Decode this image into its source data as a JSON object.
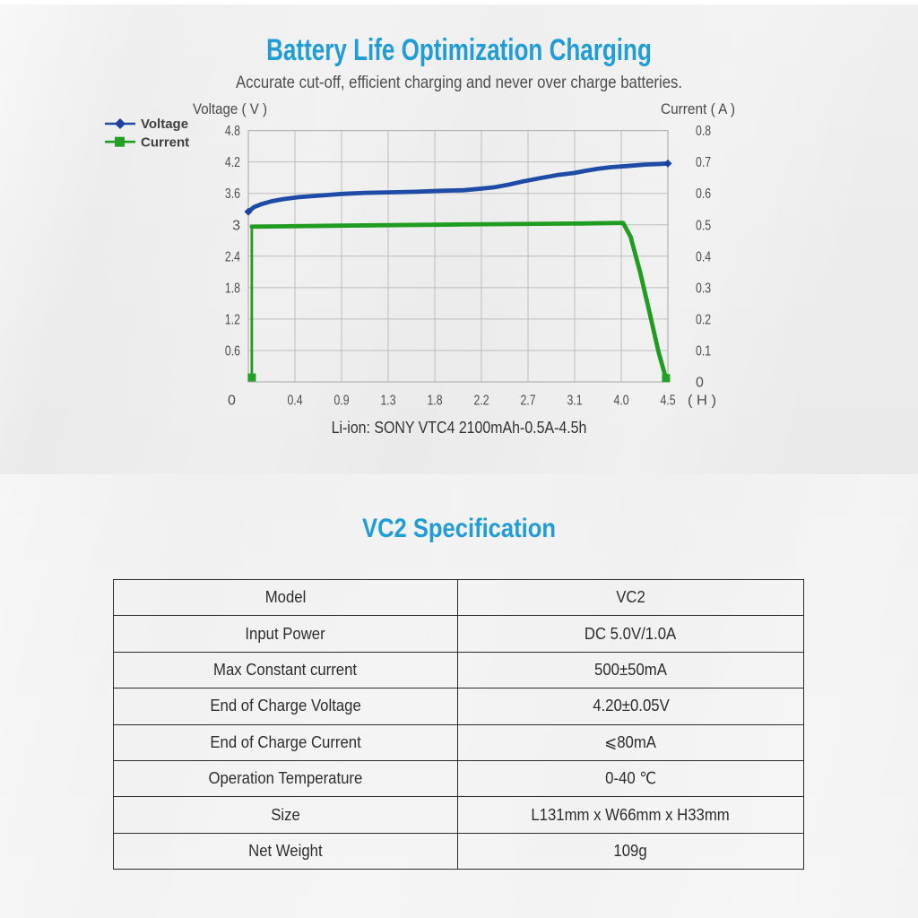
{
  "hero": {
    "title": "Battery Life Optimization Charging",
    "subtitle": "Accurate cut-off, efficient charging and never over charge batteries.",
    "caption": "Li-ion: SONY VTC4 2100mAh-0.5A-4.5h"
  },
  "spec": {
    "title": "VC2 Specification",
    "rows": [
      {
        "label": "Model",
        "value": "VC2"
      },
      {
        "label": "Input Power",
        "value": "DC 5.0V/1.0A"
      },
      {
        "label": "Max Constant current",
        "value": "500±50mA"
      },
      {
        "label": "End of Charge Voltage",
        "value": "4.20±0.05V"
      },
      {
        "label": "End of Charge Current",
        "value": "⩽80mA"
      },
      {
        "label": "Operation Temperature",
        "value": "0-40 ℃"
      },
      {
        "label": "Size",
        "value": "L131mm x W66mm x H33mm"
      },
      {
        "label": "Net Weight",
        "value": "109g"
      }
    ]
  },
  "colors": {
    "accent": "#219dd6",
    "voltage_line": "#1e4ba6",
    "voltage_marker": "#1d42a0",
    "current_line": "#209d20",
    "current_marker": "#23a126",
    "grid": "#bdbdbd",
    "plot_border": "#b3b3b3",
    "tick_text": "#4d4d4d",
    "axis_title_text": "#4a4a4a",
    "legend_text": "#3f3f3f"
  },
  "chart_data": {
    "type": "line",
    "title": "",
    "left_axis": {
      "title": "Voltage ( V )",
      "ticks": [
        "4.8",
        "4.2",
        "3.6",
        "3",
        "2.4",
        "1.8",
        "1.2",
        "0.6"
      ],
      "min": 0,
      "max": 4.8
    },
    "right_axis": {
      "title": "Current ( A )",
      "ticks": [
        "0.8",
        "0.7",
        "0.6",
        "0.5",
        "0.4",
        "0.3",
        "0.2",
        "0.1",
        "0"
      ],
      "min": 0,
      "max": 0.8
    },
    "x_axis": {
      "tick_labels": [
        "0",
        "0.4",
        "0.9",
        "1.3",
        "1.8",
        "2.2",
        "2.7",
        "3.1",
        "4.0",
        "4.5"
      ],
      "tick_hours": [
        0,
        0.4,
        0.9,
        1.3,
        1.8,
        2.2,
        2.7,
        3.1,
        4.0,
        4.5
      ],
      "unit_label": "( H )"
    },
    "grid": true,
    "legend_position": "top-left",
    "series": [
      {
        "name": "Voltage",
        "axis": "left",
        "marker": "diamond",
        "points": [
          [
            0,
            3.25
          ],
          [
            0.05,
            3.34
          ],
          [
            0.12,
            3.4
          ],
          [
            0.2,
            3.45
          ],
          [
            0.3,
            3.49
          ],
          [
            0.45,
            3.53
          ],
          [
            0.6,
            3.55
          ],
          [
            0.75,
            3.57
          ],
          [
            0.9,
            3.59
          ],
          [
            1.1,
            3.61
          ],
          [
            1.35,
            3.62
          ],
          [
            1.6,
            3.63
          ],
          [
            1.85,
            3.65
          ],
          [
            2.05,
            3.66
          ],
          [
            2.2,
            3.69
          ],
          [
            2.35,
            3.72
          ],
          [
            2.5,
            3.77
          ],
          [
            2.65,
            3.83
          ],
          [
            2.8,
            3.89
          ],
          [
            2.95,
            3.95
          ],
          [
            3.1,
            3.99
          ],
          [
            3.3,
            4.03
          ],
          [
            3.55,
            4.07
          ],
          [
            3.8,
            4.1
          ],
          [
            4.05,
            4.12
          ],
          [
            4.25,
            4.15
          ],
          [
            4.4,
            4.16
          ],
          [
            4.5,
            4.17
          ]
        ]
      },
      {
        "name": "Current",
        "axis": "right",
        "marker": "square",
        "points": [
          [
            0.03,
            0.014
          ],
          [
            0.03,
            0.494
          ],
          [
            0.8,
            0.497
          ],
          [
            2.0,
            0.501
          ],
          [
            3.2,
            0.504
          ],
          [
            4.02,
            0.506
          ],
          [
            4.1,
            0.462
          ],
          [
            4.2,
            0.352
          ],
          [
            4.3,
            0.225
          ],
          [
            4.4,
            0.095
          ],
          [
            4.46,
            0.032
          ],
          [
            4.48,
            0.012
          ]
        ]
      }
    ]
  }
}
